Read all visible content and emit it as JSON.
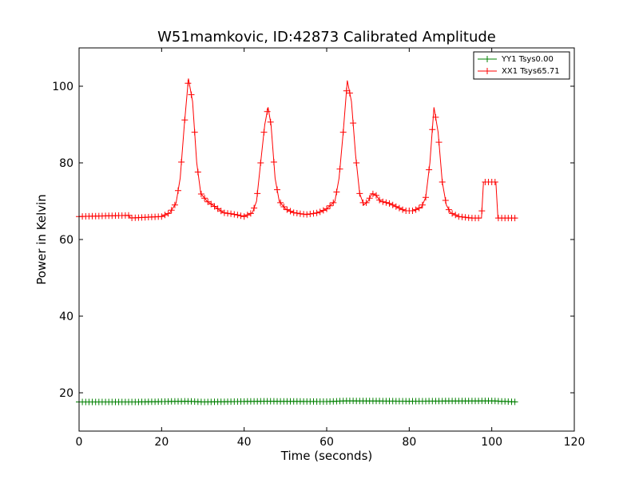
{
  "chart_data": {
    "type": "line",
    "title": "W51mamkovic, ID:42873 Calibrated Amplitude",
    "xlabel": "Time (seconds)",
    "ylabel": "Power in Kelvin",
    "xlim": [
      0,
      120
    ],
    "ylim": [
      10,
      110
    ],
    "xticks": [
      0,
      20,
      40,
      60,
      80,
      100,
      120
    ],
    "yticks": [
      20,
      40,
      60,
      80,
      100
    ],
    "grid": false,
    "legend_position": "top-right",
    "markers": "+",
    "series": [
      {
        "name": "YY1 Tsys0.00",
        "color": "#008000",
        "x_start": 0,
        "x_end": 106,
        "points": [
          [
            0,
            17.6
          ],
          [
            14,
            17.6
          ],
          [
            26,
            17.8
          ],
          [
            30,
            17.6
          ],
          [
            45,
            17.8
          ],
          [
            60,
            17.7
          ],
          [
            65,
            17.9
          ],
          [
            80,
            17.8
          ],
          [
            100,
            17.9
          ],
          [
            106,
            17.6
          ]
        ]
      },
      {
        "name": "XX1 Tsys65.71",
        "color": "#ff0000",
        "x_start": 0,
        "x_end": 106,
        "points": [
          [
            0,
            66
          ],
          [
            12,
            66.3
          ],
          [
            12.5,
            65.6
          ],
          [
            20,
            66
          ],
          [
            22,
            67
          ],
          [
            23.5,
            69.5
          ],
          [
            24.5,
            76
          ],
          [
            25.5,
            90
          ],
          [
            26.5,
            102
          ],
          [
            27.5,
            96
          ],
          [
            28.5,
            80
          ],
          [
            29.5,
            72
          ],
          [
            31,
            70
          ],
          [
            33,
            68.5
          ],
          [
            35,
            67
          ],
          [
            38,
            66.5
          ],
          [
            40,
            66
          ],
          [
            42,
            67
          ],
          [
            43,
            70
          ],
          [
            44,
            80
          ],
          [
            45,
            90
          ],
          [
            45.8,
            94.5
          ],
          [
            46.5,
            90
          ],
          [
            47.5,
            76
          ],
          [
            48.5,
            70
          ],
          [
            50,
            68
          ],
          [
            52,
            67
          ],
          [
            55,
            66.5
          ],
          [
            58,
            67
          ],
          [
            60,
            68
          ],
          [
            62,
            70
          ],
          [
            63,
            76
          ],
          [
            64,
            88
          ],
          [
            65,
            101.5
          ],
          [
            66,
            96
          ],
          [
            67,
            82
          ],
          [
            68,
            72
          ],
          [
            69,
            69
          ],
          [
            70,
            70
          ],
          [
            71,
            72
          ],
          [
            72,
            71.5
          ],
          [
            73,
            70
          ],
          [
            75,
            69.5
          ],
          [
            77,
            68.5
          ],
          [
            79,
            67.5
          ],
          [
            81,
            67.5
          ],
          [
            83,
            68.5
          ],
          [
            84,
            71
          ],
          [
            85,
            80
          ],
          [
            86,
            94.5
          ],
          [
            87,
            88
          ],
          [
            88,
            75
          ],
          [
            89,
            69
          ],
          [
            90,
            67
          ],
          [
            92,
            66
          ],
          [
            95,
            65.6
          ],
          [
            97.5,
            65.6
          ],
          [
            98,
            75
          ],
          [
            101,
            75
          ],
          [
            101.5,
            65.6
          ],
          [
            106,
            65.6
          ]
        ]
      }
    ]
  }
}
